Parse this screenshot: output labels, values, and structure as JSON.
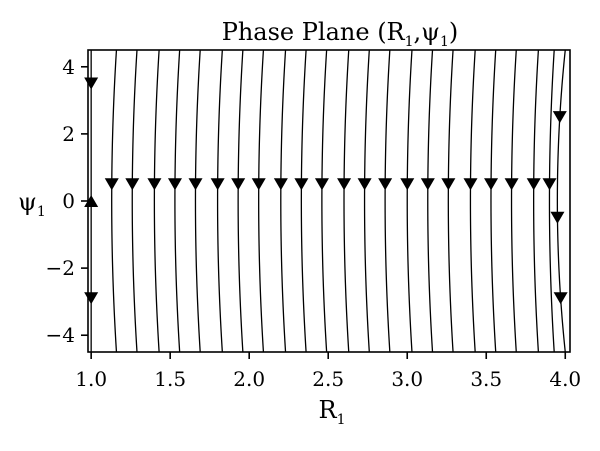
{
  "chart_data": {
    "type": "streamplot",
    "title": {
      "main": "Phase Plane (R",
      "sub1": "1",
      "sep": ",ψ",
      "sub2": "1",
      "close": ")"
    },
    "xlabel": {
      "main": "R",
      "sub": "1"
    },
    "ylabel": {
      "main": "ψ",
      "sub": "1"
    },
    "xlim": [
      0.98,
      4.03
    ],
    "ylim": [
      -4.5,
      4.5
    ],
    "xticks": [
      {
        "value": 1.0,
        "label": "1.0"
      },
      {
        "value": 1.5,
        "label": "1.5"
      },
      {
        "value": 2.0,
        "label": "2.0"
      },
      {
        "value": 2.5,
        "label": "2.5"
      },
      {
        "value": 3.0,
        "label": "3.0"
      },
      {
        "value": 3.5,
        "label": "3.5"
      },
      {
        "value": 4.0,
        "label": "4.0"
      }
    ],
    "yticks": [
      {
        "value": 4,
        "label": "4"
      },
      {
        "value": 2,
        "label": "2"
      },
      {
        "value": 0,
        "label": "0"
      },
      {
        "value": -2,
        "label": "−2"
      },
      {
        "value": -4,
        "label": "−4"
      }
    ],
    "streamlines": [
      {
        "r0": 1.0,
        "bow": 0.0,
        "arrows": [
          {
            "y": 3.5,
            "dir": "down"
          },
          {
            "y": 0.0,
            "dir": "up"
          },
          {
            "y": -2.9,
            "dir": "down"
          }
        ]
      },
      {
        "r0": 1.13,
        "bow": 0.03,
        "arrows": [
          {
            "y": 0.5,
            "dir": "down"
          }
        ]
      },
      {
        "r0": 1.26,
        "bow": 0.03,
        "arrows": [
          {
            "y": 0.5,
            "dir": "down"
          }
        ]
      },
      {
        "r0": 1.4,
        "bow": 0.03,
        "arrows": [
          {
            "y": 0.5,
            "dir": "down"
          }
        ]
      },
      {
        "r0": 1.53,
        "bow": 0.03,
        "arrows": [
          {
            "y": 0.5,
            "dir": "down"
          }
        ]
      },
      {
        "r0": 1.66,
        "bow": 0.03,
        "arrows": [
          {
            "y": 0.5,
            "dir": "down"
          }
        ]
      },
      {
        "r0": 1.8,
        "bow": 0.03,
        "arrows": [
          {
            "y": 0.5,
            "dir": "down"
          }
        ]
      },
      {
        "r0": 1.93,
        "bow": 0.03,
        "arrows": [
          {
            "y": 0.5,
            "dir": "down"
          }
        ]
      },
      {
        "r0": 2.06,
        "bow": 0.03,
        "arrows": [
          {
            "y": 0.5,
            "dir": "down"
          }
        ]
      },
      {
        "r0": 2.2,
        "bow": 0.03,
        "arrows": [
          {
            "y": 0.5,
            "dir": "down"
          }
        ]
      },
      {
        "r0": 2.33,
        "bow": 0.03,
        "arrows": [
          {
            "y": 0.5,
            "dir": "down"
          }
        ]
      },
      {
        "r0": 2.46,
        "bow": 0.03,
        "arrows": [
          {
            "y": 0.5,
            "dir": "down"
          }
        ]
      },
      {
        "r0": 2.6,
        "bow": 0.03,
        "arrows": [
          {
            "y": 0.5,
            "dir": "down"
          }
        ]
      },
      {
        "r0": 2.73,
        "bow": 0.03,
        "arrows": [
          {
            "y": 0.5,
            "dir": "down"
          }
        ]
      },
      {
        "r0": 2.86,
        "bow": 0.03,
        "arrows": [
          {
            "y": 0.5,
            "dir": "down"
          }
        ]
      },
      {
        "r0": 3.0,
        "bow": 0.03,
        "arrows": [
          {
            "y": 0.5,
            "dir": "down"
          }
        ]
      },
      {
        "r0": 3.13,
        "bow": 0.03,
        "arrows": [
          {
            "y": 0.5,
            "dir": "down"
          }
        ]
      },
      {
        "r0": 3.26,
        "bow": 0.03,
        "arrows": [
          {
            "y": 0.5,
            "dir": "down"
          }
        ]
      },
      {
        "r0": 3.4,
        "bow": 0.03,
        "arrows": [
          {
            "y": 0.5,
            "dir": "down"
          }
        ]
      },
      {
        "r0": 3.53,
        "bow": 0.03,
        "arrows": [
          {
            "y": 0.5,
            "dir": "down"
          }
        ]
      },
      {
        "r0": 3.66,
        "bow": 0.03,
        "arrows": [
          {
            "y": 0.5,
            "dir": "down"
          }
        ]
      },
      {
        "r0": 3.8,
        "bow": 0.03,
        "arrows": [
          {
            "y": 0.5,
            "dir": "down"
          }
        ]
      },
      {
        "r0": 3.9,
        "bow": 0.03,
        "arrows": [
          {
            "y": 0.5,
            "dir": "down"
          }
        ]
      },
      {
        "r0": 3.95,
        "bow": 0.05,
        "arrows": [
          {
            "y": 2.5,
            "dir": "down"
          },
          {
            "y": -0.5,
            "dir": "down"
          },
          {
            "y": -2.9,
            "dir": "down"
          }
        ]
      }
    ]
  }
}
